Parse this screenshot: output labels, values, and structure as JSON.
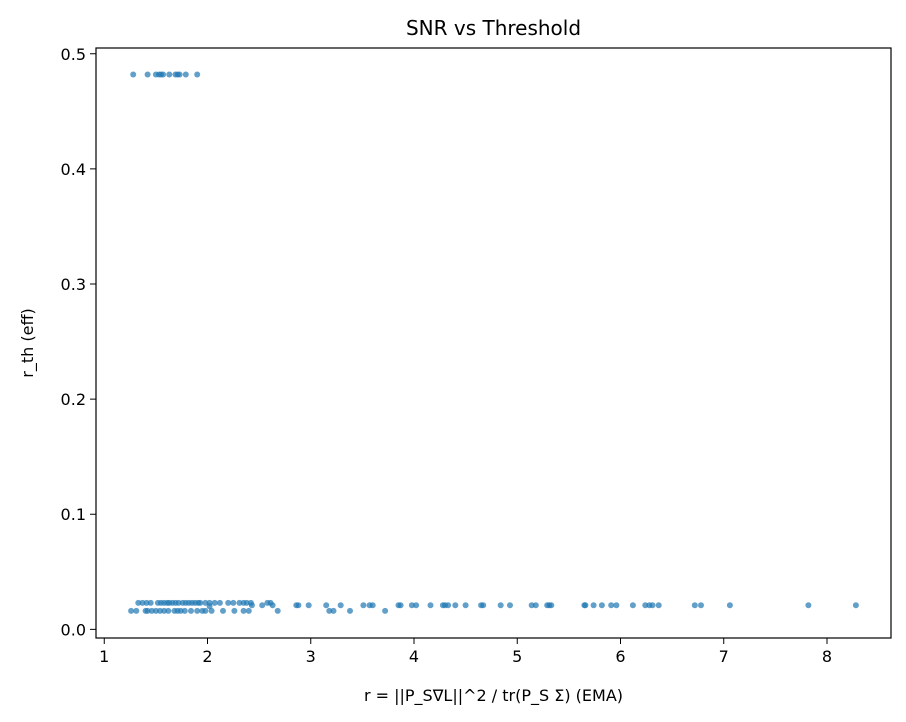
{
  "chart_data": {
    "type": "scatter",
    "title": "SNR vs Threshold",
    "xlabel": "r = ||P_S∇L||^2 / tr(P_S Σ) (EMA)",
    "ylabel": "r_th (eff)",
    "xlim": [
      0.92,
      8.62
    ],
    "ylim": [
      -0.0075,
      0.505
    ],
    "xticks": [
      1,
      2,
      3,
      4,
      5,
      6,
      7,
      8
    ],
    "yticks": [
      0.0,
      0.1,
      0.2,
      0.3,
      0.4,
      0.5
    ],
    "xtick_labels": [
      "1",
      "2",
      "3",
      "4",
      "5",
      "6",
      "7",
      "8"
    ],
    "ytick_labels": [
      "0.0",
      "0.1",
      "0.2",
      "0.3",
      "0.4",
      "0.5"
    ],
    "grid": false,
    "marker_color": "#1f77b4",
    "marker_alpha": 0.7,
    "series": [
      {
        "points": [
          [
            1.28,
            0.482
          ],
          [
            1.42,
            0.482
          ],
          [
            1.5,
            0.482
          ],
          [
            1.53,
            0.482
          ],
          [
            1.55,
            0.482
          ],
          [
            1.57,
            0.482
          ],
          [
            1.63,
            0.482
          ],
          [
            1.69,
            0.482
          ],
          [
            1.71,
            0.482
          ],
          [
            1.73,
            0.482
          ],
          [
            1.79,
            0.482
          ],
          [
            1.9,
            0.482
          ],
          [
            1.26,
            0.016
          ],
          [
            1.31,
            0.016
          ],
          [
            1.4,
            0.016
          ],
          [
            1.42,
            0.016
          ],
          [
            1.46,
            0.016
          ],
          [
            1.5,
            0.016
          ],
          [
            1.54,
            0.016
          ],
          [
            1.58,
            0.016
          ],
          [
            1.62,
            0.016
          ],
          [
            1.68,
            0.016
          ],
          [
            1.71,
            0.016
          ],
          [
            1.74,
            0.016
          ],
          [
            1.78,
            0.016
          ],
          [
            1.84,
            0.016
          ],
          [
            1.9,
            0.016
          ],
          [
            1.95,
            0.016
          ],
          [
            1.98,
            0.016
          ],
          [
            2.04,
            0.016
          ],
          [
            2.15,
            0.016
          ],
          [
            2.26,
            0.016
          ],
          [
            2.35,
            0.016
          ],
          [
            2.4,
            0.016
          ],
          [
            2.68,
            0.016
          ],
          [
            3.18,
            0.016
          ],
          [
            3.22,
            0.016
          ],
          [
            3.38,
            0.016
          ],
          [
            3.72,
            0.016
          ],
          [
            1.33,
            0.023
          ],
          [
            1.37,
            0.023
          ],
          [
            1.41,
            0.023
          ],
          [
            1.45,
            0.023
          ],
          [
            1.52,
            0.023
          ],
          [
            1.55,
            0.023
          ],
          [
            1.58,
            0.023
          ],
          [
            1.61,
            0.023
          ],
          [
            1.63,
            0.023
          ],
          [
            1.66,
            0.023
          ],
          [
            1.69,
            0.023
          ],
          [
            1.72,
            0.023
          ],
          [
            1.76,
            0.023
          ],
          [
            1.79,
            0.023
          ],
          [
            1.82,
            0.023
          ],
          [
            1.85,
            0.023
          ],
          [
            1.88,
            0.023
          ],
          [
            1.91,
            0.023
          ],
          [
            1.93,
            0.023
          ],
          [
            1.98,
            0.023
          ],
          [
            2.02,
            0.023
          ],
          [
            2.07,
            0.023
          ],
          [
            2.12,
            0.023
          ],
          [
            2.2,
            0.023
          ],
          [
            2.25,
            0.023
          ],
          [
            2.31,
            0.023
          ],
          [
            2.35,
            0.023
          ],
          [
            2.38,
            0.023
          ],
          [
            2.42,
            0.023
          ],
          [
            2.58,
            0.023
          ],
          [
            2.61,
            0.023
          ],
          [
            2.02,
            0.02
          ],
          [
            2.43,
            0.021
          ],
          [
            2.53,
            0.021
          ],
          [
            2.63,
            0.021
          ],
          [
            2.86,
            0.021
          ],
          [
            2.88,
            0.021
          ],
          [
            2.98,
            0.021
          ],
          [
            3.15,
            0.021
          ],
          [
            3.29,
            0.021
          ],
          [
            3.51,
            0.021
          ],
          [
            3.57,
            0.021
          ],
          [
            3.6,
            0.021
          ],
          [
            3.85,
            0.021
          ],
          [
            3.87,
            0.021
          ],
          [
            3.98,
            0.021
          ],
          [
            4.02,
            0.021
          ],
          [
            4.16,
            0.021
          ],
          [
            4.28,
            0.021
          ],
          [
            4.3,
            0.021
          ],
          [
            4.33,
            0.021
          ],
          [
            4.4,
            0.021
          ],
          [
            4.5,
            0.021
          ],
          [
            4.65,
            0.021
          ],
          [
            4.67,
            0.021
          ],
          [
            4.84,
            0.021
          ],
          [
            4.93,
            0.021
          ],
          [
            5.14,
            0.021
          ],
          [
            5.18,
            0.021
          ],
          [
            5.29,
            0.021
          ],
          [
            5.31,
            0.021
          ],
          [
            5.33,
            0.021
          ],
          [
            5.65,
            0.021
          ],
          [
            5.66,
            0.021
          ],
          [
            5.74,
            0.021
          ],
          [
            5.82,
            0.021
          ],
          [
            5.91,
            0.021
          ],
          [
            5.96,
            0.021
          ],
          [
            6.12,
            0.021
          ],
          [
            6.24,
            0.021
          ],
          [
            6.28,
            0.021
          ],
          [
            6.31,
            0.021
          ],
          [
            6.37,
            0.021
          ],
          [
            6.72,
            0.021
          ],
          [
            6.78,
            0.021
          ],
          [
            7.06,
            0.021
          ],
          [
            7.82,
            0.021
          ],
          [
            8.28,
            0.021
          ]
        ]
      }
    ]
  }
}
